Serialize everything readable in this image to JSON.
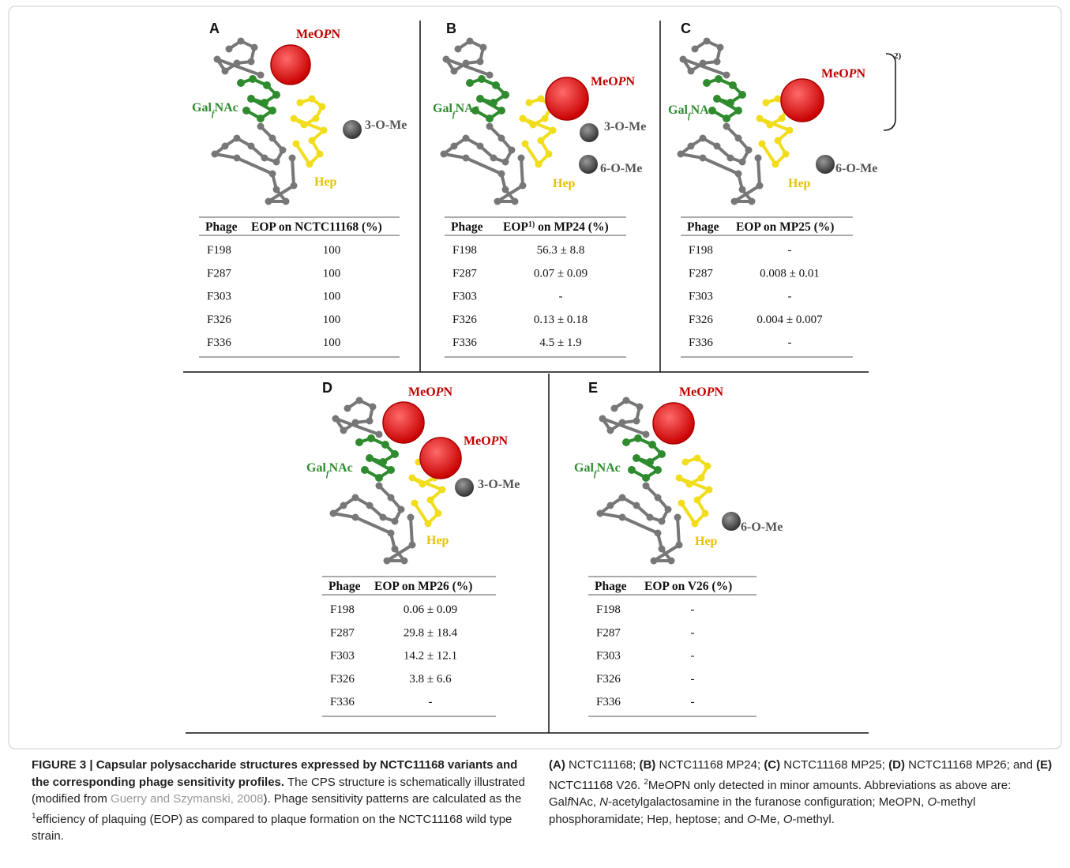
{
  "panels": [
    {
      "letter": "A",
      "labels": [
        [
          "MeO",
          "P",
          "N"
        ],
        [
          "Gal",
          "f",
          "NAc"
        ],
        [
          "3-O-Me"
        ],
        [
          "Hep"
        ]
      ],
      "table": {
        "header": [
          "Phage",
          [
            "EOP on NCTC11168 (%)"
          ]
        ],
        "rows": [
          [
            "F198",
            "100"
          ],
          [
            "F287",
            "100"
          ],
          [
            "F303",
            "100"
          ],
          [
            "F326",
            "100"
          ],
          [
            "F336",
            "100"
          ]
        ]
      }
    },
    {
      "letter": "B",
      "labels": [
        [
          "MeO",
          "P",
          "N"
        ],
        [
          "Gal",
          "f",
          "NAc"
        ],
        [
          "3-O-Me"
        ],
        [
          "6-O-Me"
        ],
        [
          "Hep"
        ]
      ],
      "table": {
        "header": [
          "Phage",
          [
            "EOP",
            "1)",
            " on MP24 (%)"
          ]
        ],
        "rows": [
          [
            "F198",
            "56.3 ± 8.8"
          ],
          [
            "F287",
            "0.07 ± 0.09"
          ],
          [
            "F303",
            "-"
          ],
          [
            "F326",
            "0.13 ± 0.18"
          ],
          [
            "F336",
            "4.5 ± 1.9"
          ]
        ]
      }
    },
    {
      "letter": "C",
      "labels": [
        [
          "MeO",
          "P",
          "N"
        ],
        [
          "2)"
        ],
        [
          "Gal",
          "f",
          "NAc"
        ],
        [
          "6-O-Me"
        ],
        [
          "Hep"
        ]
      ],
      "table": {
        "header": [
          "Phage",
          [
            "EOP on MP25 (%)"
          ]
        ],
        "rows": [
          [
            "F198",
            "-"
          ],
          [
            "F287",
            "0.008 ± 0.01"
          ],
          [
            "F303",
            "-"
          ],
          [
            "F326",
            "0.004 ± 0.007"
          ],
          [
            "F336",
            "-"
          ]
        ]
      }
    },
    {
      "letter": "D",
      "labels": [
        [
          "MeO",
          "P",
          "N"
        ],
        [
          "MeO",
          "P",
          "N"
        ],
        [
          "Gal",
          "f",
          "NAc"
        ],
        [
          "3-O-Me"
        ],
        [
          "Hep"
        ]
      ],
      "table": {
        "header": [
          "Phage",
          [
            "EOP on MP26 (%)"
          ]
        ],
        "rows": [
          [
            "F198",
            "0.06 ± 0.09"
          ],
          [
            "F287",
            "29.8 ± 18.4"
          ],
          [
            "F303",
            "14.2 ± 12.1"
          ],
          [
            "F326",
            "3.8 ± 6.6"
          ],
          [
            "F336",
            "-"
          ]
        ]
      }
    },
    {
      "letter": "E",
      "labels": [
        [
          "MeO",
          "P",
          "N"
        ],
        [
          "Gal",
          "f",
          "NAc"
        ],
        [
          "6-O-Me"
        ],
        [
          "Hep"
        ]
      ],
      "table": {
        "header": [
          "Phage",
          [
            "EOP on V26 (%)"
          ]
        ],
        "rows": [
          [
            "F198",
            "-"
          ],
          [
            "F287",
            "-"
          ],
          [
            "F303",
            "-"
          ],
          [
            "F326",
            "-"
          ],
          [
            "F336",
            "-"
          ]
        ]
      }
    }
  ],
  "caption": {
    "left": [
      "FIGURE 3 | Capsular polysaccharide structures expressed by NCTC11168 variants and the corresponding phage sensitivity profiles.",
      " The CPS structure is schematically illustrated (modified from ",
      "Guerry and Szymanski, 2008",
      "). Phage sensitivity patterns are calculated as the ",
      "1",
      "efficiency of plaquing (EOP) as compared to plaque formation on the NCTC11168 wild type strain."
    ],
    "right": [
      "(A)",
      " NCTC11168; ",
      "(B)",
      " NCTC11168 MP24; ",
      "(C)",
      " NCTC11168 MP25; ",
      "(D)",
      " NCTC11168 MP26; and ",
      "(E)",
      " NCTC11168 V26. ",
      "2",
      "MeOPN only detected in minor amounts. Abbreviations as above are: Gal",
      "f",
      "NAc, ",
      "N",
      "-acetylgalactosamine in the furanose configuration; MeOPN, ",
      "O",
      "-methyl phosphoramidate; Hep, heptose; and ",
      "O",
      "-Me, ",
      "O",
      "-methyl."
    ]
  }
}
